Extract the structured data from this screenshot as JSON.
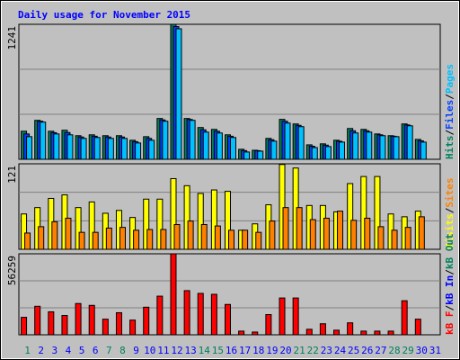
{
  "chart_data": {
    "type": "bar",
    "title": "Daily usage for November 2015",
    "separator": "/",
    "categories": [
      "1",
      "2",
      "3",
      "4",
      "5",
      "6",
      "7",
      "8",
      "9",
      "10",
      "11",
      "12",
      "13",
      "14",
      "15",
      "16",
      "17",
      "18",
      "19",
      "20",
      "21",
      "22",
      "23",
      "24",
      "25",
      "26",
      "27",
      "28",
      "29",
      "30",
      "31"
    ],
    "category_colors": [
      "#00805c",
      "#0000ff",
      "#0000ff",
      "#0000ff",
      "#0000ff",
      "#0000ff",
      "#00805c",
      "#00805c",
      "#0000ff",
      "#0000ff",
      "#0000ff",
      "#0000ff",
      "#0000ff",
      "#00805c",
      "#00805c",
      "#0000ff",
      "#0000ff",
      "#0000ff",
      "#0000ff",
      "#0000ff",
      "#00805c",
      "#00805c",
      "#0000ff",
      "#0000ff",
      "#0000ff",
      "#0000ff",
      "#0000ff",
      "#00805c",
      "#00805c",
      "#0000ff",
      "#0000ff"
    ],
    "panels": [
      {
        "ylim": [
          0,
          1241
        ],
        "yticks": [
          1241
        ],
        "grid": 3,
        "series": [
          {
            "name": "Hits",
            "color": "#00805c",
            "values": [
              258,
              358,
              258,
              267,
              217,
              225,
              217,
              217,
              175,
              208,
              375,
              1241,
              375,
              292,
              275,
              225,
              92,
              83,
              192,
              367,
              325,
              133,
              142,
              175,
              283,
              275,
              233,
              217,
              325,
              183,
              0
            ]
          },
          {
            "name": "Files",
            "color": "#0040ff",
            "values": [
              233,
              350,
              245,
              246,
              205,
              212,
              205,
              205,
              162,
              192,
              362,
              1220,
              366,
              271,
              258,
              212,
              80,
              79,
              180,
              350,
              312,
              120,
              130,
              166,
              262,
              262,
              225,
              212,
              316,
              170,
              0
            ]
          },
          {
            "name": "Pages",
            "color": "#00c0ff",
            "values": [
              208,
              342,
              233,
              225,
              192,
              200,
              192,
              192,
              150,
              175,
              350,
              1200,
              358,
              250,
              242,
              200,
              67,
              75,
              167,
              333,
              300,
              108,
              117,
              158,
              242,
              250,
              217,
              208,
              308,
              158,
              0
            ]
          }
        ]
      },
      {
        "ylim": [
          0,
          121
        ],
        "yticks": [
          121
        ],
        "grid": 3,
        "series": [
          {
            "name": "Visits",
            "color": "#ffff00",
            "values": [
              50,
              59,
              72,
              77,
              59,
              67,
              51,
              55,
              45,
              71,
              71,
              100,
              90,
              79,
              84,
              82,
              27,
              36,
              63,
              120,
              115,
              62,
              62,
              53,
              93,
              103,
              103,
              50,
              46,
              54,
              0
            ]
          },
          {
            "name": "Sites",
            "color": "#ff8000",
            "values": [
              23,
              32,
              39,
              44,
              24,
              24,
              30,
              31,
              27,
              28,
              28,
              35,
              40,
              35,
              33,
              27,
              27,
              24,
              40,
              59,
              59,
              42,
              44,
              54,
              41,
              44,
              32,
              27,
              31,
              46,
              0
            ]
          }
        ]
      },
      {
        "ylim": [
          0,
          56259
        ],
        "yticks": [
          56259
        ],
        "grid": 3,
        "series": [
          {
            "name": "kB F",
            "color": "#ff0000",
            "values": [
              12140,
              19810,
              15980,
              13420,
              21730,
              20450,
              10860,
              15340,
              10220,
              19170,
              26840,
              56259,
              30680,
              28760,
              28120,
              21090,
              2560,
              1920,
              14060,
              25570,
              25570,
              3830,
              7670,
              3200,
              8310,
              2560,
              2560,
              2560,
              23650,
              10860,
              0
            ]
          },
          {
            "name": "kB In",
            "color": "#0000ff"
          },
          {
            "name": "kB Out",
            "color": "#00805c"
          }
        ]
      }
    ]
  }
}
